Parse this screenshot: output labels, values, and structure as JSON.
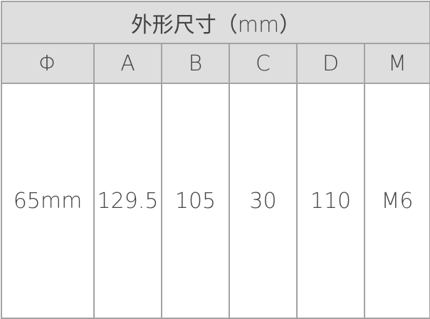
{
  "title": "外形尺寸（mm）",
  "headers": [
    "Φ",
    "A",
    "B",
    "C",
    "D",
    "M"
  ],
  "values": [
    "65mm",
    "129.5",
    "105",
    "30",
    "110",
    "M6"
  ]
}
